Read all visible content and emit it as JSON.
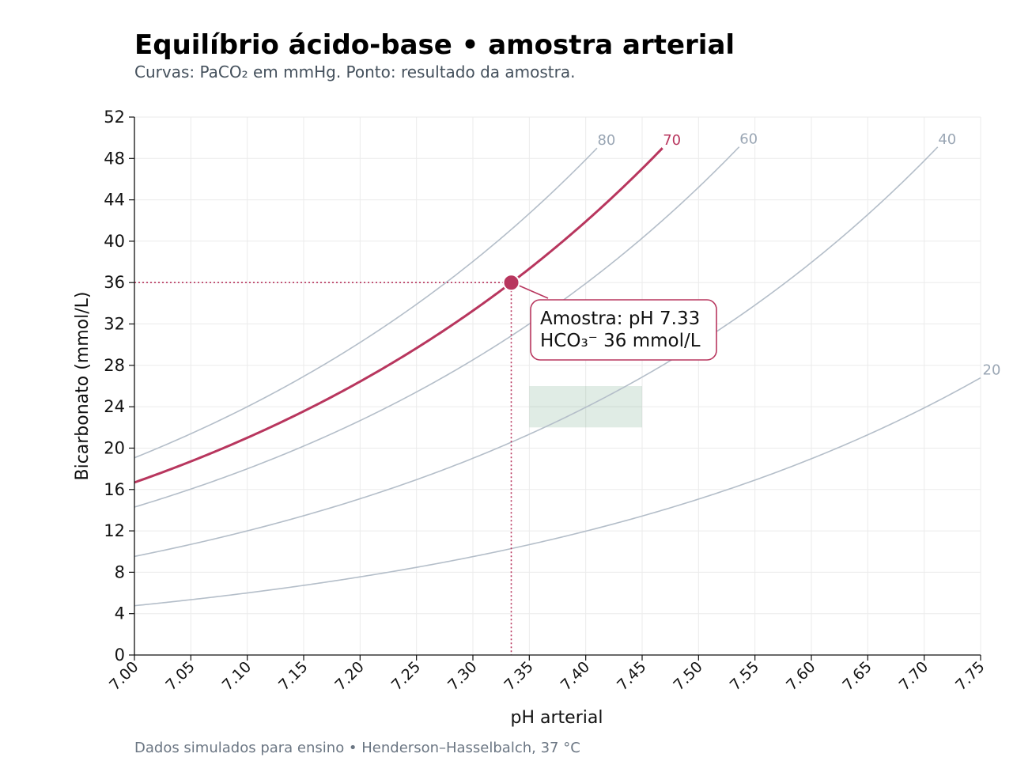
{
  "chart_data": {
    "type": "line",
    "title": "Equilíbrio ácido-base • amostra arterial",
    "subtitle": "Curvas: PaCO₂ em mmHg. Ponto: resultado da amostra.",
    "xlabel": "pH arterial",
    "ylabel": "Bicarbonato (mmol/L)",
    "xlim": [
      7.0,
      7.75
    ],
    "ylim": [
      0,
      52
    ],
    "x_ticks": [
      "7.00",
      "7.05",
      "7.10",
      "7.15",
      "7.20",
      "7.25",
      "7.30",
      "7.35",
      "7.40",
      "7.45",
      "7.50",
      "7.55",
      "7.60",
      "7.65",
      "7.70",
      "7.75"
    ],
    "y_ticks": [
      "0",
      "4",
      "8",
      "12",
      "16",
      "20",
      "24",
      "28",
      "32",
      "36",
      "40",
      "44",
      "48",
      "52"
    ],
    "grid": true,
    "series": [
      {
        "name": "80",
        "paco2": 80,
        "color": "#b4bec9",
        "highlight": false
      },
      {
        "name": "70",
        "paco2": 70,
        "color": "#b8365e",
        "highlight": true
      },
      {
        "name": "60",
        "paco2": 60,
        "color": "#b4bec9",
        "highlight": false
      },
      {
        "name": "40",
        "paco2": 40,
        "color": "#b4bec9",
        "highlight": false
      },
      {
        "name": "20",
        "paco2": 20,
        "color": "#b4bec9",
        "highlight": false
      }
    ],
    "normal_range": {
      "ph": [
        7.35,
        7.45
      ],
      "hco3": [
        22,
        26
      ],
      "color": "#2e7d4f"
    },
    "sample": {
      "ph": 7.334,
      "hco3": 36,
      "color": "#b8365e"
    },
    "annotation": {
      "line1": "Amostra: pH 7.33",
      "line2": "HCO₃⁻ 36 mmol/L"
    },
    "footer": "Dados simulados para ensino • Henderson–Hasselbalch, 37 °C"
  }
}
